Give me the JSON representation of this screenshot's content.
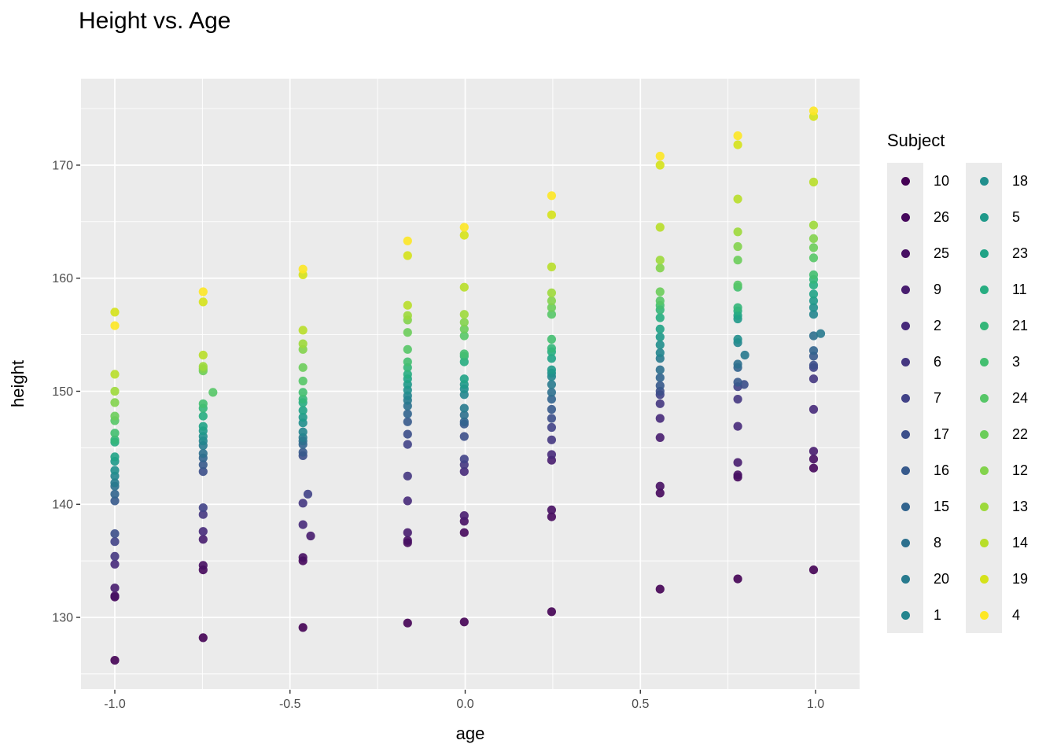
{
  "chart_data": {
    "type": "scatter",
    "title": "Height vs. Age",
    "xlabel": "age",
    "ylabel": "height",
    "xlim": [
      -1.0965,
      1.1257
    ],
    "ylim": [
      123.67,
      177.65
    ],
    "x_ticks": {
      "values": [
        -1.0,
        -0.5,
        0.0,
        0.5,
        1.0
      ],
      "labels": [
        "-1.0",
        "-0.5",
        "0.0",
        "0.5",
        "1.0"
      ]
    },
    "x_minor": [
      -0.75,
      -0.25,
      0.25,
      0.75
    ],
    "y_ticks": {
      "values": [
        130,
        140,
        150,
        160,
        170
      ],
      "labels": [
        "130",
        "140",
        "150",
        "160",
        "170"
      ]
    },
    "y_minor": [
      125,
      135,
      145,
      155,
      165,
      175
    ],
    "grid": true,
    "panel_color": "#EBEBEB",
    "grid_color": "#FFFFFF",
    "tick_color": "#333333",
    "tick_label_color": "#4D4D4D",
    "point_radius": 5.6,
    "point_opacity": 0.9,
    "x": [
      -1.0,
      -0.7479,
      -0.463,
      -0.1643,
      -0.0027,
      0.2466,
      0.5562,
      0.7781,
      0.9945
    ],
    "series": [
      {
        "name": "10",
        "color": "#440154",
        "values": [
          126.2,
          128.2,
          129.1,
          129.5,
          129.6,
          130.5,
          132.5,
          133.4,
          134.2
        ]
      },
      {
        "name": "26",
        "color": "#46085C",
        "values": [
          131.8,
          134.2,
          135.0,
          136.6,
          137.5,
          138.9,
          141.0,
          142.4,
          143.2
        ]
      },
      {
        "name": "25",
        "color": "#471063",
        "values": [
          131.9,
          134.6,
          135.3,
          136.8,
          138.5,
          139.5,
          141.6,
          142.6,
          144.0
        ]
      },
      {
        "name": "9",
        "color": "#481D6F",
        "values": [
          132.6,
          136.9,
          137.2,
          137.5,
          139.0,
          143.9,
          145.9,
          143.7,
          144.7
        ]
      },
      {
        "name": "2",
        "color": "#472A7A",
        "values": [
          134.7,
          137.6,
          138.2,
          140.3,
          142.9,
          144.4,
          147.6,
          146.9,
          148.4
        ]
      },
      {
        "name": "6",
        "color": "#453781",
        "values": [
          135.4,
          139.1,
          140.1,
          142.5,
          143.5,
          145.7,
          148.9,
          149.3,
          151.1
        ]
      },
      {
        "name": "7",
        "color": "#414287",
        "values": [
          136.7,
          139.7,
          140.9,
          145.3,
          144.0,
          146.8,
          149.7,
          150.4,
          152.1
        ]
      },
      {
        "name": "17",
        "color": "#3C4F8A",
        "values": [
          137.4,
          142.9,
          144.3,
          146.2,
          146.0,
          147.6,
          150.0,
          150.6,
          152.3
        ]
      },
      {
        "name": "16",
        "color": "#375A8C",
        "values": [
          140.3,
          143.5,
          144.6,
          147.3,
          147.1,
          148.4,
          150.5,
          150.8,
          153.1
        ]
      },
      {
        "name": "15",
        "color": "#32648E",
        "values": [
          140.9,
          144.1,
          145.3,
          148.0,
          147.3,
          149.3,
          151.2,
          152.1,
          153.6
        ]
      },
      {
        "name": "8",
        "color": "#2D708E",
        "values": [
          141.6,
          144.5,
          145.6,
          148.7,
          147.9,
          149.9,
          151.9,
          152.4,
          154.9
        ]
      },
      {
        "name": "20",
        "color": "#287A8E",
        "values": [
          141.9,
          145.2,
          145.9,
          149.2,
          148.5,
          150.6,
          152.9,
          153.2,
          155.1
        ]
      },
      {
        "name": "1",
        "color": "#24858E",
        "values": [
          142.5,
          145.6,
          146.4,
          149.6,
          149.7,
          151.3,
          153.4,
          154.3,
          156.8
        ]
      },
      {
        "name": "18",
        "color": "#218F8D",
        "values": [
          143.0,
          146.0,
          147.2,
          150.1,
          150.2,
          151.6,
          154.1,
          154.6,
          157.4
        ]
      },
      {
        "name": "5",
        "color": "#1F998A",
        "values": [
          143.8,
          146.5,
          147.7,
          150.6,
          150.6,
          151.9,
          154.8,
          156.4,
          158.0
        ]
      },
      {
        "name": "23",
        "color": "#20A386",
        "values": [
          144.2,
          146.9,
          148.3,
          151.1,
          151.1,
          152.9,
          155.5,
          156.7,
          158.6
        ]
      },
      {
        "name": "11",
        "color": "#27AD81",
        "values": [
          145.5,
          147.8,
          149.0,
          151.5,
          152.6,
          153.5,
          156.5,
          157.1,
          159.4
        ]
      },
      {
        "name": "21",
        "color": "#34B679",
        "values": [
          145.7,
          148.5,
          149.3,
          152.1,
          153.1,
          153.8,
          157.2,
          157.4,
          159.9
        ]
      },
      {
        "name": "3",
        "color": "#44BF70",
        "values": [
          146.3,
          148.9,
          149.9,
          152.6,
          153.3,
          154.6,
          157.6,
          159.2,
          160.3
        ]
      },
      {
        "name": "24",
        "color": "#56C667",
        "values": [
          147.4,
          149.9,
          150.9,
          153.7,
          154.9,
          156.8,
          158.0,
          159.4,
          161.8
        ]
      },
      {
        "name": "22",
        "color": "#6BCD5A",
        "values": [
          147.8,
          151.8,
          152.1,
          155.2,
          155.5,
          157.4,
          158.8,
          161.6,
          162.7
        ]
      },
      {
        "name": "12",
        "color": "#83D34C",
        "values": [
          149.0,
          152.0,
          153.7,
          156.3,
          156.1,
          158.0,
          160.9,
          162.8,
          163.5
        ]
      },
      {
        "name": "13",
        "color": "#9DD93B",
        "values": [
          150.0,
          152.2,
          154.2,
          156.7,
          156.8,
          158.7,
          161.6,
          164.1,
          164.7
        ]
      },
      {
        "name": "14",
        "color": "#B8DE29",
        "values": [
          151.5,
          153.2,
          155.4,
          157.6,
          159.2,
          161.0,
          164.5,
          167.0,
          168.5
        ]
      },
      {
        "name": "19",
        "color": "#D5E21A",
        "values": [
          157.0,
          157.9,
          160.3,
          162.0,
          163.8,
          165.6,
          170.0,
          171.8,
          174.3
        ]
      },
      {
        "name": "4",
        "color": "#FDE725",
        "values": [
          155.8,
          158.8,
          160.8,
          163.3,
          164.5,
          167.3,
          170.8,
          172.6,
          174.8
        ]
      }
    ],
    "x_offsets": [
      {
        "series": "24",
        "index": 1,
        "dx": 0.028
      },
      {
        "series": "9",
        "index": 2,
        "dx": 0.022
      },
      {
        "series": "7",
        "index": 2,
        "dx": 0.014
      },
      {
        "series": "17",
        "index": 7,
        "dx": 0.018
      },
      {
        "series": "20",
        "index": 7,
        "dx": 0.02
      },
      {
        "series": "20",
        "index": 8,
        "dx": 0.02
      }
    ],
    "legend": {
      "title": "Subject",
      "position": "right",
      "columns": [
        [
          "10",
          "26",
          "25",
          "9",
          "2",
          "6",
          "7",
          "17",
          "16",
          "15",
          "8",
          "20",
          "1"
        ],
        [
          "18",
          "5",
          "23",
          "11",
          "21",
          "3",
          "24",
          "22",
          "12",
          "13",
          "14",
          "19",
          "4"
        ]
      ]
    }
  }
}
